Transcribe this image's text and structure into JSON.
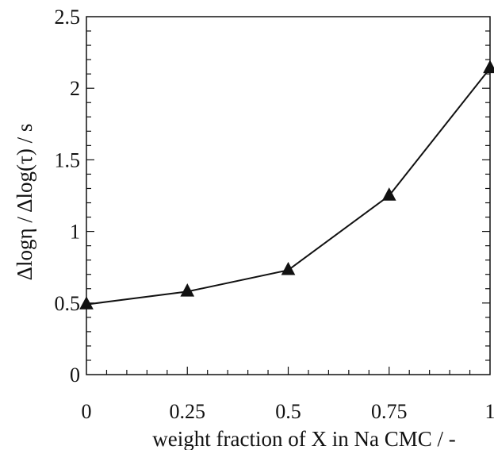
{
  "chart_data": {
    "type": "line",
    "title": "",
    "xlabel": "weight fraction of X in Na CMC / -",
    "ylabel": "Δlogη / Δlog(τ) / s",
    "xlim": [
      0,
      1
    ],
    "ylim": [
      0,
      2.5
    ],
    "x_ticks": [
      "0",
      "0.25",
      "0.5",
      "0.75",
      "1"
    ],
    "y_ticks": [
      "0",
      "0.5",
      "1",
      "1.5",
      "2",
      "2.5"
    ],
    "grid": false,
    "marker": "triangle",
    "series": [
      {
        "x": [
          0,
          0.25,
          0.5,
          0.75,
          1
        ],
        "y": [
          0.49,
          0.58,
          0.73,
          1.25,
          2.14
        ]
      }
    ]
  }
}
